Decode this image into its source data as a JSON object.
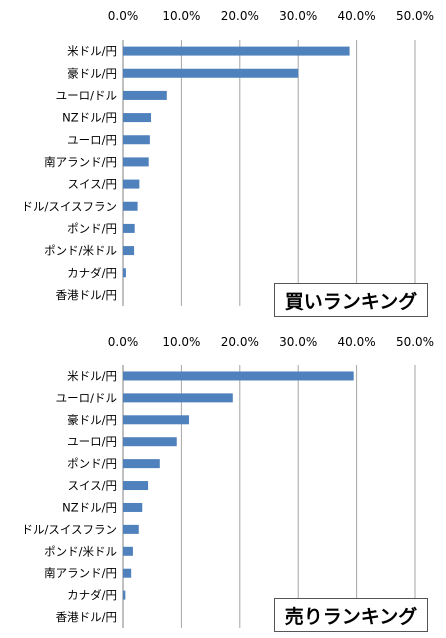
{
  "chart_data": [
    {
      "type": "bar",
      "orientation": "horizontal",
      "caption": "買いランキング",
      "x_ticks": [
        "0.0%",
        "10.0%",
        "20.0%",
        "30.0%",
        "40.0%",
        "50.0%"
      ],
      "xlim": [
        0,
        50
      ],
      "x_axis_position": "top",
      "grid": true,
      "bar_color": "#4F81BD",
      "categories": [
        "米ドル/円",
        "豪ドル/円",
        "ユーロ/ドル",
        "NZドル/円",
        "ユーロ/円",
        "南アランド/円",
        "スイス/円",
        "ドル/スイスフラン",
        "ポンド/円",
        "ポンド/米ドル",
        "カナダ/円",
        "香港ドル/円"
      ],
      "values": [
        38.8,
        30.0,
        7.5,
        4.8,
        4.6,
        4.4,
        2.8,
        2.5,
        2.0,
        1.9,
        0.5,
        0.0
      ]
    },
    {
      "type": "bar",
      "orientation": "horizontal",
      "caption": "売りランキング",
      "x_ticks": [
        "0.0%",
        "10.0%",
        "20.0%",
        "30.0%",
        "40.0%",
        "50.0%"
      ],
      "xlim": [
        0,
        50
      ],
      "x_axis_position": "top",
      "grid": true,
      "bar_color": "#4F81BD",
      "categories": [
        "米ドル/円",
        "ユーロ/ドル",
        "豪ドル/円",
        "ユーロ/円",
        "ポンド/円",
        "スイス/円",
        "NZドル/円",
        "ドル/スイスフラン",
        "ポンド/米ドル",
        "南アランド/円",
        "カナダ/円",
        "香港ドル/円"
      ],
      "values": [
        39.5,
        18.8,
        11.3,
        9.2,
        6.3,
        4.3,
        3.3,
        2.7,
        1.7,
        1.4,
        0.4,
        0.0
      ]
    }
  ]
}
